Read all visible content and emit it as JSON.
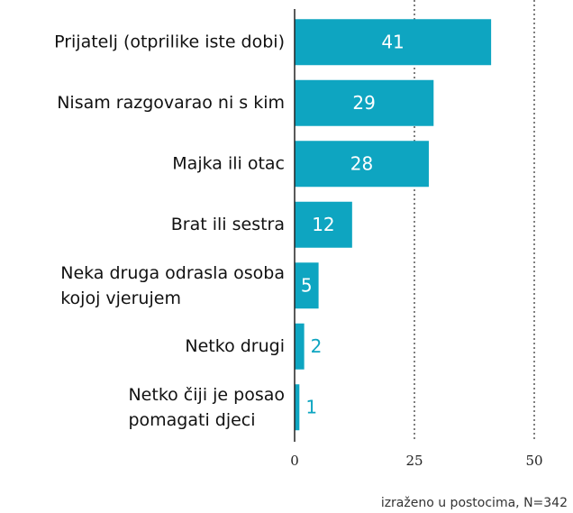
{
  "chart_data": {
    "type": "bar",
    "orientation": "horizontal",
    "categories": [
      "Prijatelj (otprilike iste dobi)",
      "Nisam razgovarao ni s kim",
      "Majka ili otac",
      "Brat ili sestra",
      "Neka druga odrasla osoba\nkojoj vjerujem",
      "Netko drugi",
      "Netko čiji je posao\npomagati djeci"
    ],
    "values": [
      41,
      29,
      28,
      12,
      5,
      2,
      1
    ],
    "color": "#0ea5c1",
    "xlim": [
      0,
      50
    ],
    "xticks": [
      0,
      25,
      50
    ],
    "grid": true,
    "note": "izraženo u postocima, N=342"
  }
}
